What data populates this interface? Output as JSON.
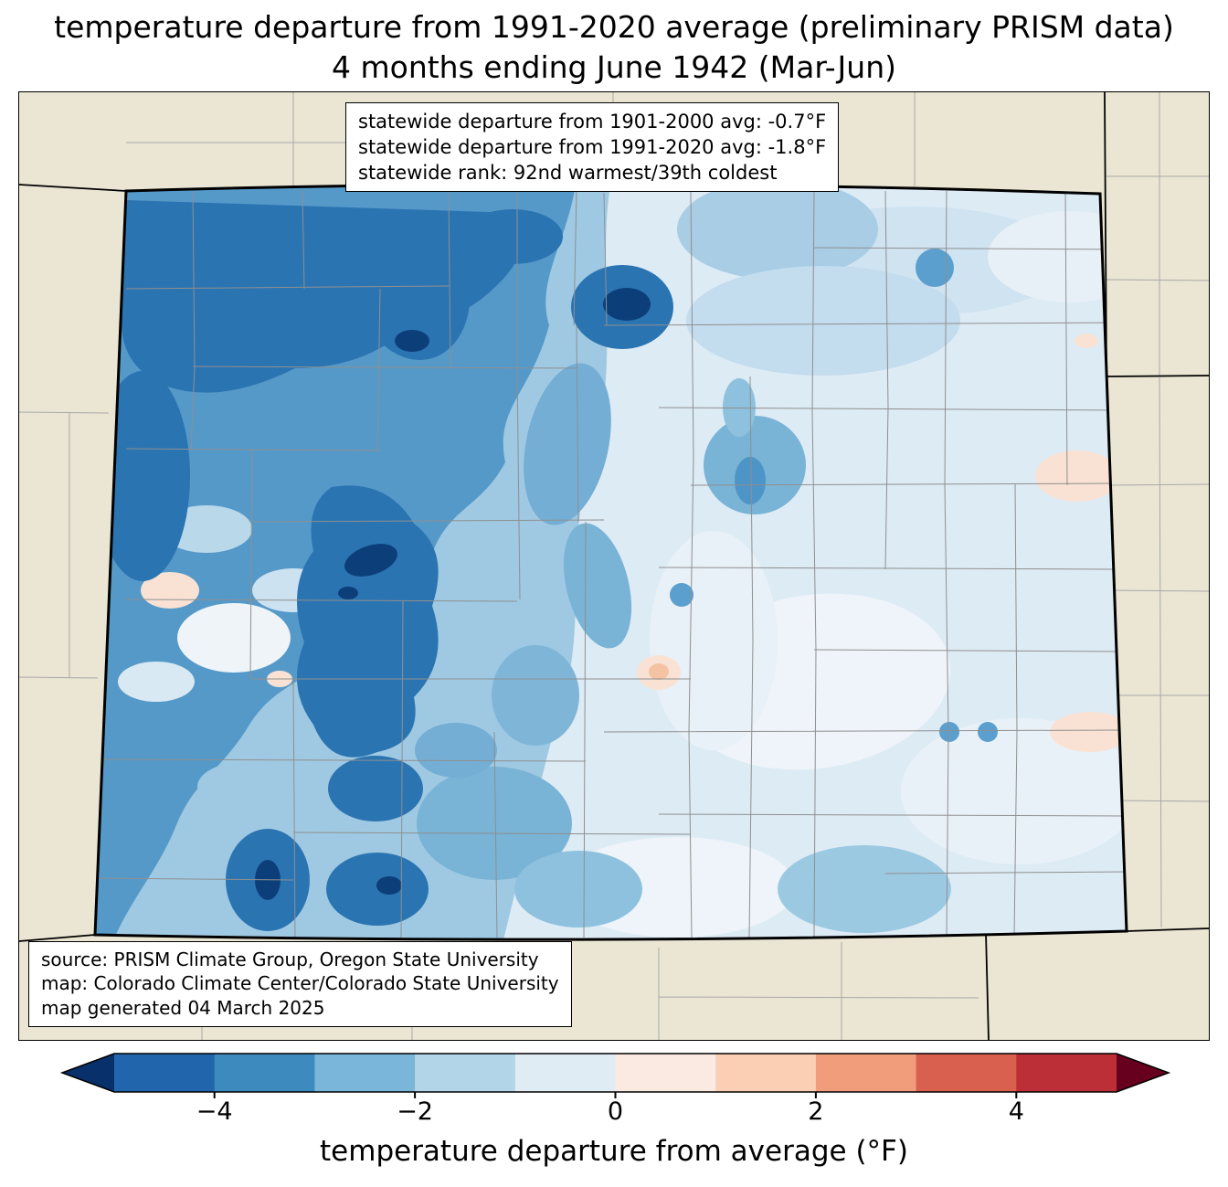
{
  "title": {
    "line1": "temperature departure from 1991-2020 average (preliminary PRISM data)",
    "line2": "4 months ending June 1942 (Mar-Jun)"
  },
  "stats_box": {
    "lines": [
      "statewide departure from 1901-2000 avg: -0.7°F",
      "statewide departure from 1991-2020 avg: -1.8°F",
      "statewide rank: 92nd warmest/39th coldest"
    ]
  },
  "source_box": {
    "lines": [
      "source: PRISM Climate Group, Oregon State University",
      "map: Colorado Climate Center/Colorado State University",
      "map generated 04 March 2025"
    ]
  },
  "colorbar": {
    "label": "temperature departure from average (°F)",
    "range": [
      -5,
      5
    ],
    "ticks": [
      {
        "value": -4,
        "label": "−4"
      },
      {
        "value": -2,
        "label": "−2"
      },
      {
        "value": 0,
        "label": "0"
      },
      {
        "value": 2,
        "label": "2"
      },
      {
        "value": 4,
        "label": "4"
      }
    ],
    "segments": [
      {
        "from": -5,
        "to": -4,
        "color": "#2166ac"
      },
      {
        "from": -4,
        "to": -3,
        "color": "#3c8abe"
      },
      {
        "from": -3,
        "to": -2,
        "color": "#7ab6d9"
      },
      {
        "from": -2,
        "to": -1,
        "color": "#b3d5e8"
      },
      {
        "from": -1,
        "to": 0,
        "color": "#e0ecf4"
      },
      {
        "from": 0,
        "to": 1,
        "color": "#faeae1"
      },
      {
        "from": 1,
        "to": 2,
        "color": "#fbcfb4"
      },
      {
        "from": 2,
        "to": 3,
        "color": "#f19d7c"
      },
      {
        "from": 3,
        "to": 4,
        "color": "#d95f4e"
      },
      {
        "from": 4,
        "to": 5,
        "color": "#bc2f36"
      }
    ],
    "arrow_left_color": "#08306b",
    "arrow_right_color": "#67001f"
  },
  "map": {
    "region": "Colorado",
    "land_color": "#eae6d3",
    "state_border_color": "#000000",
    "county_line_color": "#8f8f8f"
  },
  "chart_data": {
    "type": "heatmap",
    "title": "temperature departure from 1991-2020 average (preliminary PRISM data) — 4 months ending June 1942 (Mar-Jun)",
    "region": "Colorado",
    "colorbar_label": "temperature departure from average (°F)",
    "colorbar_ticks": [
      -4,
      -2,
      0,
      2,
      4
    ],
    "colorbar_range": [
      -5,
      5
    ],
    "statewide_departure_from_1901_2000_avg_F": -0.7,
    "statewide_departure_from_1991_2020_avg_F": -1.8,
    "statewide_rank": "92nd warmest/39th coldest",
    "pattern_summary": "strong cold anomaly (−3 to −5°F) over northwest and west-central mountains; mild cold anomaly (0 to −2°F) over eastern plains; few near-zero/slightly warm spots"
  }
}
